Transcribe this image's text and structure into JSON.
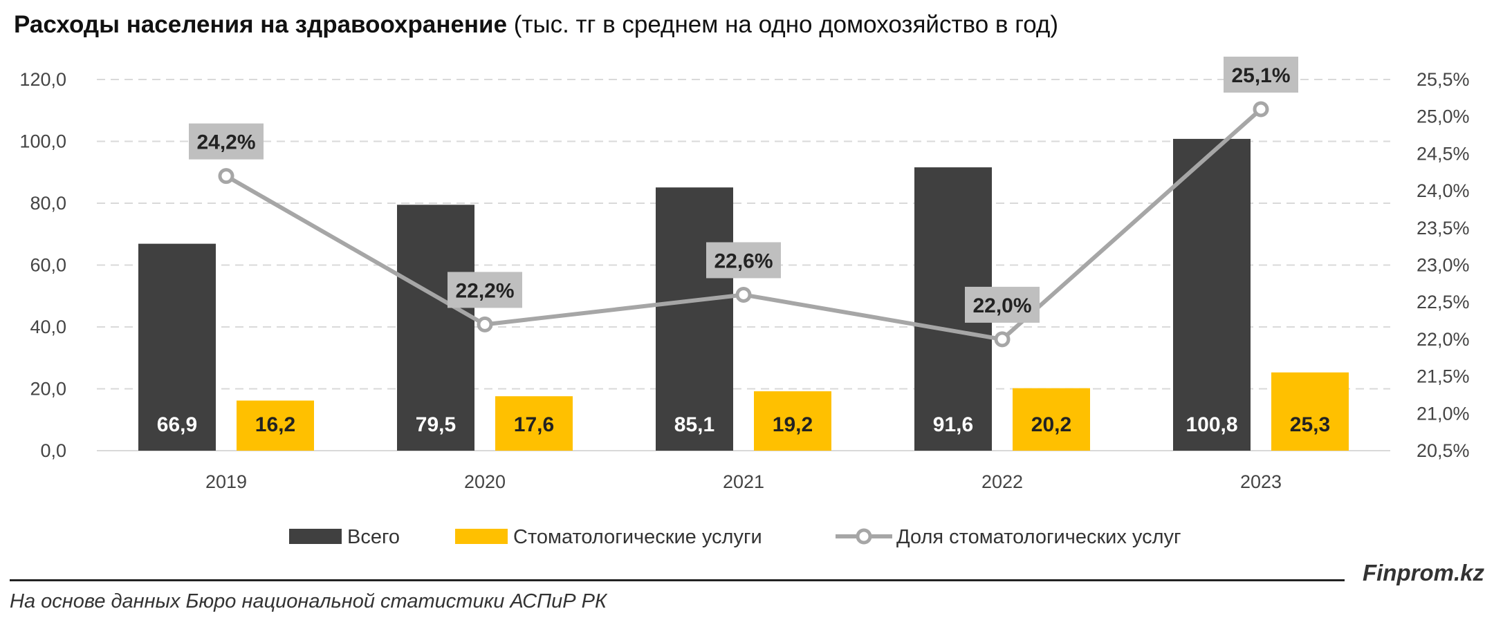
{
  "title": {
    "bold": "Расходы населения на здравоохранение",
    "normal": " (тыс. тг в среднем на одно домохозяйство в год)"
  },
  "brand": "Finprom.kz",
  "source": "На основе данных Бюро национальной статистики АСПиР РК",
  "colors": {
    "total": "#404040",
    "dental": "#FFC000",
    "share": "#A6A6A6",
    "share_label_bg": "#BFBFBF",
    "grid": "#D9D9D9"
  },
  "chart_data": {
    "type": "bar",
    "categories": [
      "2019",
      "2020",
      "2021",
      "2022",
      "2023"
    ],
    "series": [
      {
        "name": "Всего",
        "type": "bar",
        "axis": "left",
        "values": [
          66.9,
          79.5,
          85.1,
          91.6,
          100.8
        ],
        "labels": [
          "66,9",
          "79,5",
          "85,1",
          "91,6",
          "100,8"
        ]
      },
      {
        "name": "Стоматологические услуги",
        "type": "bar",
        "axis": "left",
        "values": [
          16.2,
          17.6,
          19.2,
          20.2,
          25.3
        ],
        "labels": [
          "16,2",
          "17,6",
          "19,2",
          "20,2",
          "25,3"
        ]
      },
      {
        "name": "Доля стоматологических услуг",
        "type": "line",
        "axis": "right",
        "values": [
          24.2,
          22.2,
          22.6,
          22.0,
          25.1
        ],
        "labels": [
          "24,2%",
          "22,2%",
          "22,6%",
          "22,0%",
          "25,1%"
        ]
      }
    ],
    "y_left": {
      "min": 0,
      "max": 120,
      "ticks": [
        "0,0",
        "20,0",
        "40,0",
        "60,0",
        "80,0",
        "100,0",
        "120,0"
      ]
    },
    "y_right": {
      "min": 20.5,
      "max": 25.5,
      "ticks": [
        "20,5%",
        "21,0%",
        "21,5%",
        "22,0%",
        "22,5%",
        "23,0%",
        "23,5%",
        "24,0%",
        "24,5%",
        "25,0%",
        "25,5%"
      ]
    },
    "grid": true,
    "legend_position": "bottom"
  }
}
